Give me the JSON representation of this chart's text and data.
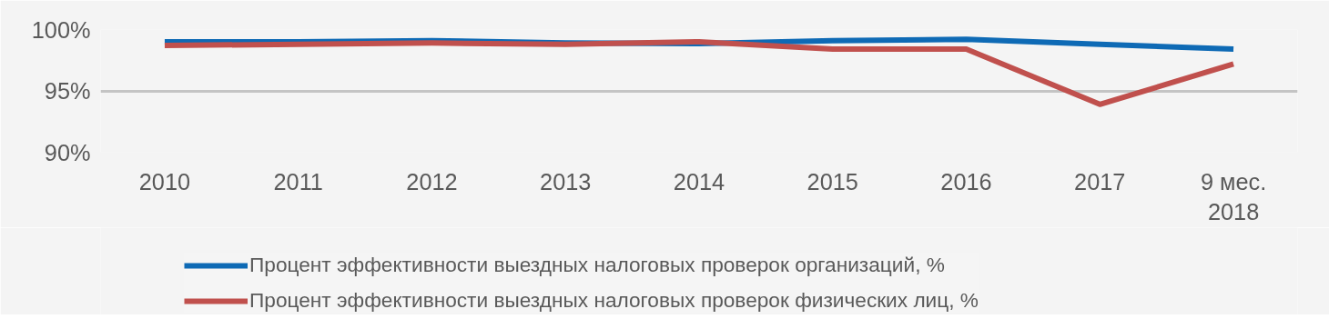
{
  "chart_data": {
    "type": "line",
    "categories": [
      "2010",
      "2011",
      "2012",
      "2013",
      "2014",
      "2015",
      "2016",
      "2017",
      "9 мес.\n2018"
    ],
    "series": [
      {
        "name": "Процент эффективности выездных налоговых проверок организаций, %",
        "color": "#0e6ab5",
        "values": [
          99.0,
          99.0,
          99.1,
          98.9,
          98.85,
          99.1,
          99.2,
          98.8,
          98.4
        ]
      },
      {
        "name": "Процент эффективности выездных налоговых проверок физических лиц, %",
        "color": "#c0504d",
        "values": [
          98.7,
          98.8,
          98.9,
          98.8,
          99.0,
          98.4,
          98.4,
          93.9,
          97.2
        ]
      }
    ],
    "ylim": [
      90,
      100
    ],
    "yticks": [
      {
        "value": 90,
        "label": "90%"
      },
      {
        "value": 95,
        "label": "95%"
      },
      {
        "value": 100,
        "label": "100%"
      }
    ],
    "grid": "y",
    "legend": "bottom",
    "marker": "none",
    "line_style": "solid"
  }
}
